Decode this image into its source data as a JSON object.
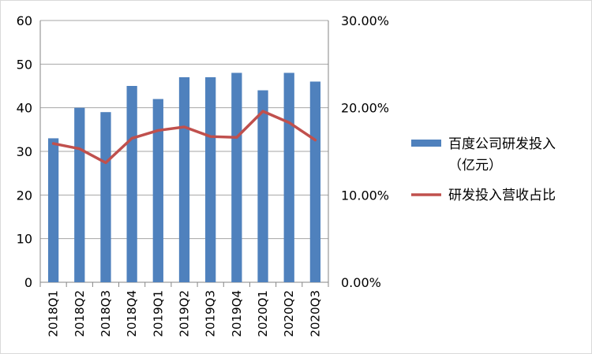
{
  "chart_data": {
    "type": "bar+line",
    "categories": [
      "2018Q1",
      "2018Q2",
      "2018Q3",
      "2018Q4",
      "2019Q1",
      "2019Q2",
      "2019Q3",
      "2019Q4",
      "2020Q1",
      "2020Q2",
      "2020Q3"
    ],
    "series": [
      {
        "name": "百度公司研发投入（亿元）",
        "legend_lines": [
          "百度公司研发投入",
          "（亿元）"
        ],
        "type": "bar",
        "axis": "left",
        "color": "#4F81BD",
        "values": [
          33,
          40,
          39,
          45,
          42,
          47,
          47,
          48,
          44,
          48,
          46
        ]
      },
      {
        "name": "研发投入营收占比",
        "legend_lines": [
          "研发投入营收占比"
        ],
        "type": "line",
        "axis": "right",
        "color": "#C0504D",
        "values": [
          0.159,
          0.153,
          0.137,
          0.165,
          0.174,
          0.178,
          0.167,
          0.166,
          0.196,
          0.183,
          0.163
        ]
      }
    ],
    "y_left": {
      "min": 0,
      "max": 60,
      "ticks": [
        "0",
        "10",
        "20",
        "30",
        "40",
        "50",
        "60"
      ]
    },
    "y_right": {
      "min": 0,
      "max": 0.3,
      "ticks": [
        "0.00%",
        "10.00%",
        "20.00%",
        "30.00%"
      ]
    },
    "grid": true,
    "legend_position": "right",
    "title": "",
    "xlabel": "",
    "ylabel": ""
  }
}
